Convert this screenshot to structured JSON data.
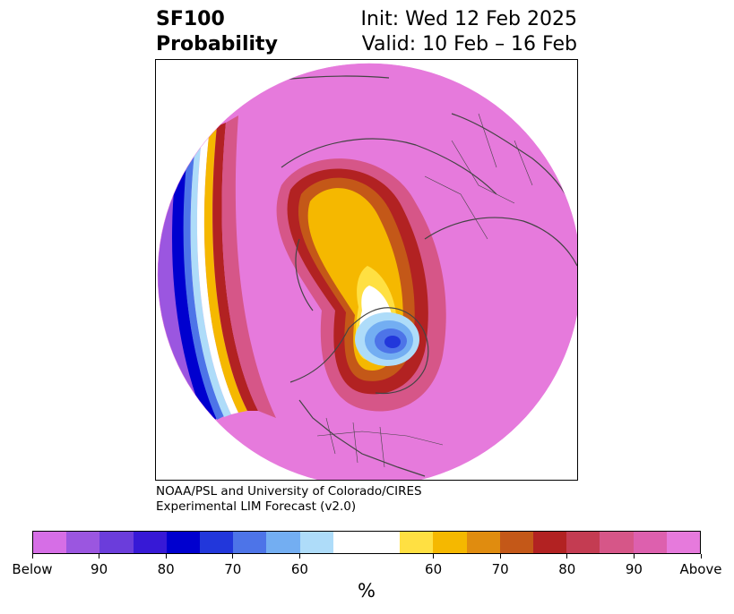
{
  "header": {
    "title_line1": "SF100",
    "title_line2": "Probability",
    "init_text": "Init: Wed 12 Feb 2025",
    "valid_text": "Valid: 10 Feb – 16 Feb"
  },
  "credit": {
    "line1": "NOAA/PSL and University of Colorado/CIRES",
    "line2": "Experimental LIM Forecast (v2.0)"
  },
  "colorbar": {
    "unit_label": "%",
    "colors": [
      "#d66ee6",
      "#9b56e0",
      "#6b3ddb",
      "#3719d6",
      "#0000cf",
      "#2237db",
      "#4d74e8",
      "#73aef2",
      "#aedcf9",
      "#ffffff",
      "#ffe042",
      "#f5b800",
      "#e08c0f",
      "#c45818",
      "#b22222",
      "#c43c52",
      "#d65688",
      "#dd60ae",
      "#e67adc"
    ],
    "tick_labels": [
      "Below",
      "90",
      "80",
      "70",
      "60",
      "60",
      "70",
      "80",
      "90",
      "Above"
    ]
  },
  "map": {
    "background_color": "#e67adc",
    "projection": "north-polar-stereographic"
  }
}
